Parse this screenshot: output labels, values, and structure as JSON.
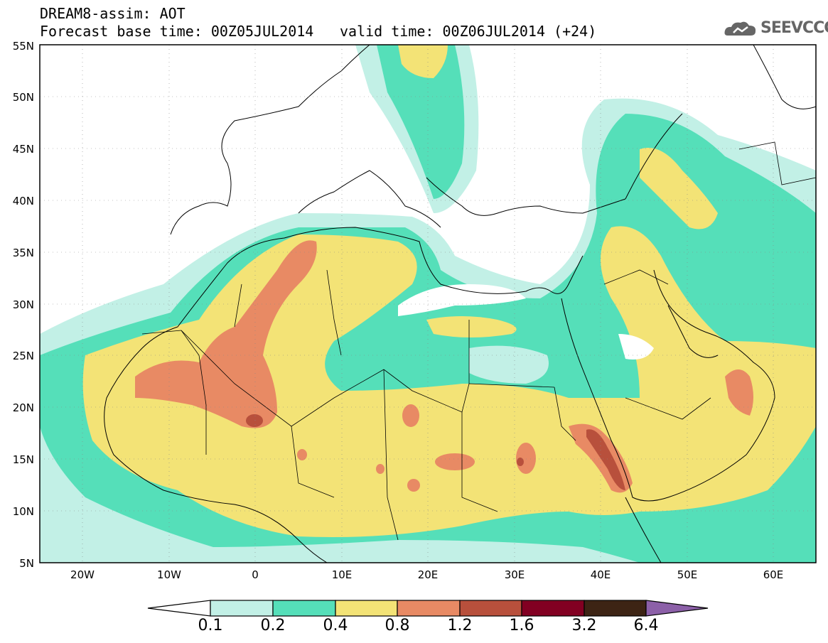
{
  "header": {
    "line1": "DREAM8-assim: AOT",
    "line2": "Forecast base time: 00Z05JUL2014",
    "valid": "valid time: 00Z06JUL2014 (+24)",
    "logo": "SEEVCCC"
  },
  "axes": {
    "lat_labels": [
      "55N",
      "50N",
      "45N",
      "40N",
      "35N",
      "30N",
      "25N",
      "20N",
      "15N",
      "10N",
      "5N"
    ],
    "lon_labels": [
      "20W",
      "10W",
      "0",
      "10E",
      "20E",
      "30E",
      "40E",
      "50E",
      "60E"
    ]
  },
  "colorbar": {
    "labels": [
      "0.1",
      "0.2",
      "0.4",
      "0.8",
      "1.2",
      "1.6",
      "3.2",
      "6.4"
    ],
    "colors": [
      "#ffffff",
      "#c2f0e6",
      "#55dfb9",
      "#f3e376",
      "#e88a64",
      "#b8503c",
      "#820022",
      "#3d2414",
      "#8c60a8"
    ]
  },
  "palette": {
    "c1": "#c2f0e6",
    "c2": "#55dfb9",
    "c3": "#f3e376",
    "c4": "#e88a64",
    "c5": "#b8503c",
    "c6": "#820022"
  }
}
